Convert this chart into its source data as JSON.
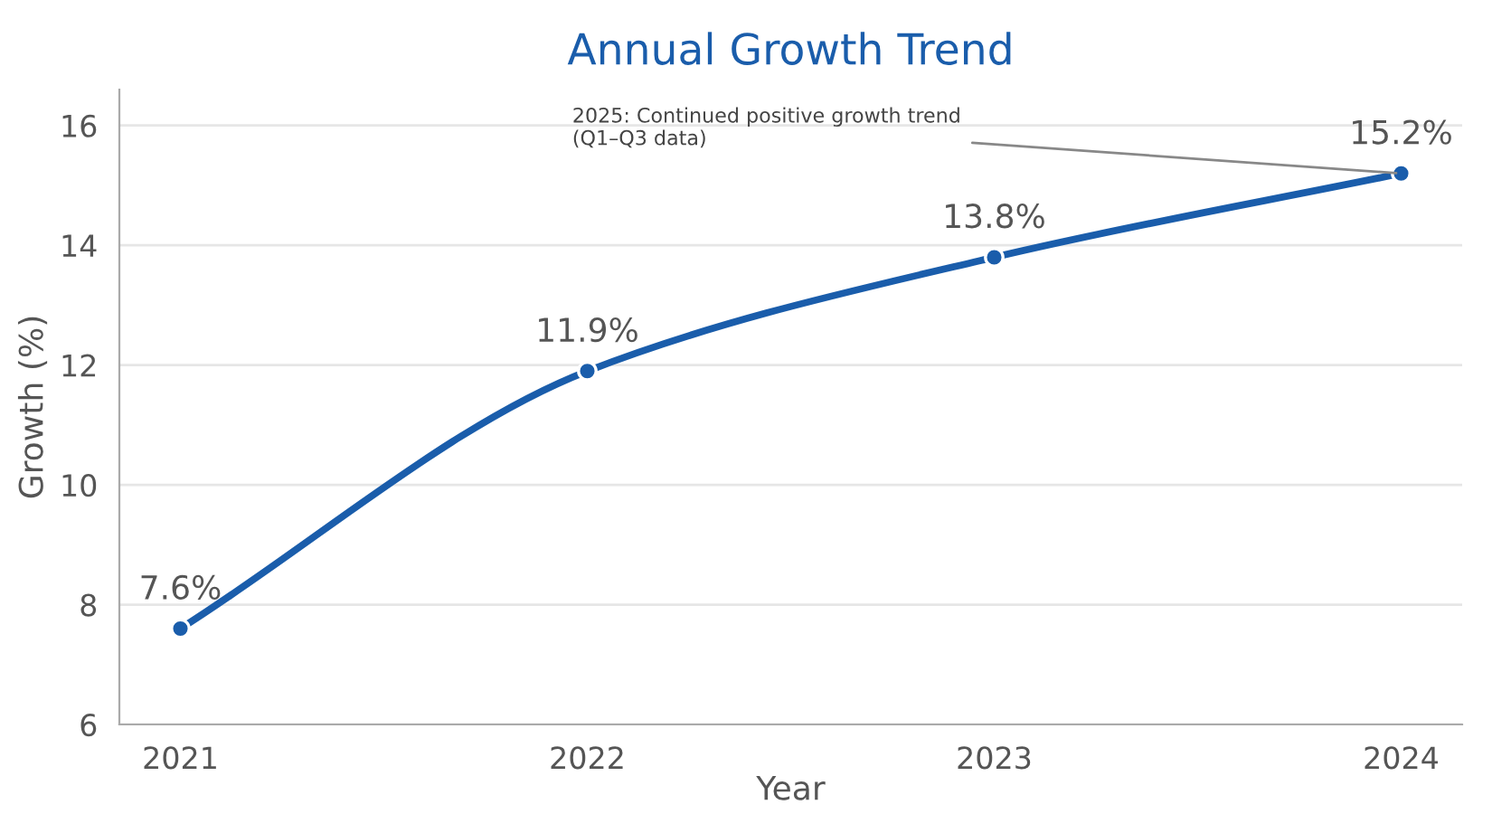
{
  "chart_data": {
    "type": "line",
    "title": "Annual Growth Trend",
    "xlabel": "Year",
    "ylabel": "Growth (%)",
    "categories": [
      "2021",
      "2022",
      "2023",
      "2024"
    ],
    "series": [
      {
        "color": "#1a5dab",
        "values": [
          7.6,
          11.9,
          13.8,
          15.2
        ],
        "value_labels": [
          "7.6%",
          "11.9%",
          "13.8%",
          "15.2%"
        ]
      }
    ],
    "ylim": [
      6,
      16.6
    ],
    "yticks": [
      6,
      8,
      10,
      12,
      14,
      16
    ],
    "grid": "y",
    "marker": "circle",
    "line_style": "solid",
    "legend": false,
    "annotations": [
      {
        "text": "2025: Continued positive growth trend\n(Q1–Q3 data)",
        "x": "2024",
        "y": 15.2
      }
    ]
  }
}
